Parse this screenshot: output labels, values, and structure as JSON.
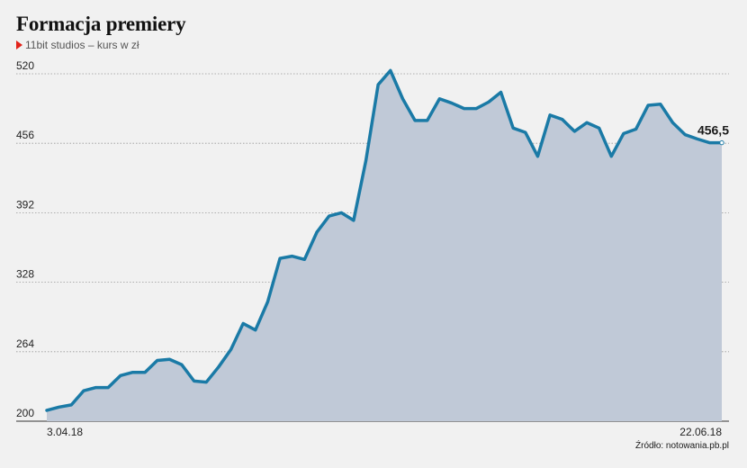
{
  "header": {
    "title": "Formacja premiery",
    "subtitle": "11bit studios – kurs w zł"
  },
  "source": "Źródło: notowania.pb.pl",
  "colors": {
    "line": "#1a7aa6",
    "area": "#c0c9d7",
    "marker": "#e2231a",
    "grid": "#999999",
    "background": "#f1f1f1"
  },
  "chart_data": {
    "type": "area",
    "title": "Formacja premiery",
    "subtitle": "11bit studios – kurs w zł",
    "ylabel": "",
    "xlabel": "",
    "ylim": [
      200,
      520
    ],
    "y_ticks": [
      200,
      264,
      328,
      392,
      456,
      520
    ],
    "y_tick_labels": [
      "200",
      "264",
      "328",
      "392",
      "456",
      "520"
    ],
    "x_tick_labels": [
      "3.04.18",
      "22.06.18"
    ],
    "grid": "horizontal dotted",
    "last_value_label": "456,5",
    "series": [
      {
        "values": [
          210,
          213,
          215,
          228,
          231,
          231,
          242,
          245,
          245,
          256,
          257,
          252,
          237,
          236,
          250,
          266,
          290,
          284,
          310,
          350,
          352,
          349,
          374,
          389,
          392,
          385,
          440,
          510,
          523,
          497,
          477,
          477,
          497,
          493,
          488,
          488,
          494,
          503,
          470,
          466,
          444,
          482,
          478,
          467,
          475,
          470,
          444,
          465,
          469,
          491,
          492,
          475,
          464,
          460,
          456.5,
          456.5
        ]
      }
    ]
  }
}
